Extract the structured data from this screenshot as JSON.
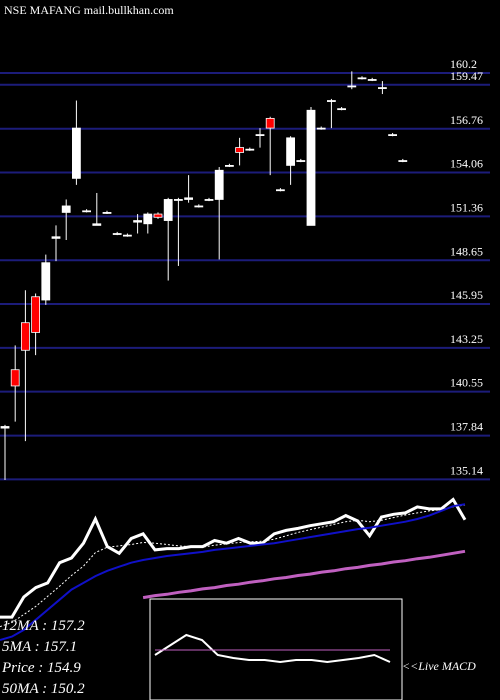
{
  "chart_data": [
    {
      "type": "candlestick",
      "title": "NSE MAFANG mail.bullkhan.com",
      "open": [
        138.3,
        141.9,
        144.8,
        146.4,
        146.2,
        150.0,
        151.6,
        153.7,
        151.7,
        150.8,
        151.6,
        150.3,
        150.2,
        151.0,
        150.9,
        151.5,
        151.1,
        152.4,
        152.4,
        152.0,
        152.4,
        152.4,
        154.5,
        155.6,
        155.5,
        156.4,
        157.4,
        153.0,
        154.5,
        154.8,
        150.8,
        156.8,
        158.5,
        158.0,
        159.4,
        159.9,
        159.8,
        159.3,
        156.4,
        154.8
      ],
      "high": [
        138.5,
        143.4,
        146.8,
        146.6,
        149.0,
        150.8,
        152.4,
        158.5,
        151.8,
        152.8,
        151.7,
        150.4,
        150.3,
        151.5,
        151.6,
        151.6,
        152.5,
        152.5,
        153.9,
        152.1,
        152.5,
        154.4,
        154.6,
        156.2,
        155.6,
        156.8,
        157.5,
        153.1,
        156.3,
        154.9,
        158.1,
        156.9,
        158.6,
        158.1,
        160.3,
        160.0,
        159.9,
        159.7,
        156.5,
        154.9
      ],
      "low": [
        135.1,
        138.7,
        137.5,
        142.8,
        145.9,
        148.6,
        149.9,
        153.3,
        151.6,
        150.8,
        151.5,
        150.2,
        150.1,
        150.3,
        150.3,
        151.2,
        147.4,
        148.3,
        152.2,
        151.9,
        152.3,
        148.7,
        154.4,
        154.5,
        155.4,
        155.6,
        153.9,
        152.9,
        153.3,
        154.7,
        150.8,
        156.7,
        156.8,
        157.9,
        159.2,
        159.8,
        159.7,
        158.9,
        156.3,
        154.7
      ],
      "close": [
        138.4,
        140.9,
        143.1,
        144.2,
        148.5,
        150.1,
        152.0,
        156.8,
        151.7,
        150.9,
        151.6,
        150.3,
        150.2,
        151.1,
        151.5,
        151.3,
        152.4,
        152.4,
        152.5,
        152.0,
        152.4,
        154.2,
        154.5,
        155.3,
        155.5,
        156.4,
        156.8,
        153.0,
        156.2,
        154.8,
        157.9,
        156.8,
        158.5,
        158.0,
        159.4,
        159.9,
        159.8,
        159.3,
        156.4,
        154.8
      ],
      "up_color": "#ffffff",
      "down_color": "#ff0000",
      "ylim": [
        135.1,
        164.7
      ],
      "yticks": [
        160.2,
        159.47,
        156.76,
        154.06,
        151.36,
        148.65,
        145.95,
        143.25,
        140.55,
        137.84,
        135.14
      ],
      "grid": true,
      "grid_color": "#1c1c7a"
    },
    {
      "type": "line",
      "series": [
        {
          "color": "#ffffff",
          "width": 3,
          "values": [
            140.4,
            140.4,
            143.4,
            144.8,
            145.5,
            148.5,
            149.2,
            151.4,
            155.0,
            150.9,
            149.9,
            152.1,
            152.8,
            150.4,
            150.6,
            150.6,
            150.9,
            150.9,
            151.8,
            151.4,
            152.1,
            151.4,
            151.4,
            152.8,
            153.3,
            153.6,
            154.0,
            154.3,
            154.6,
            155.5,
            154.7,
            152.5,
            155.3,
            155.7,
            155.9,
            156.8,
            156.5,
            156.5,
            157.9,
            154.9
          ]
        },
        {
          "color": "#ffffff",
          "width": 1,
          "dash": true,
          "values": [
            139.0,
            139.6,
            140.8,
            142.0,
            143.5,
            145.0,
            146.6,
            148.0,
            150.0,
            150.8,
            151.0,
            151.2,
            151.5,
            151.4,
            151.2,
            151.0,
            150.9,
            150.8,
            151.1,
            151.3,
            151.5,
            151.6,
            151.7,
            152.0,
            152.5,
            153.0,
            153.4,
            153.8,
            154.2,
            154.6,
            154.8,
            154.6,
            154.8,
            155.2,
            155.6,
            155.9,
            156.2,
            156.4,
            156.8,
            157.1
          ]
        },
        {
          "color": "#1010c8",
          "width": 2,
          "values": [
            137.0,
            137.5,
            138.5,
            140.0,
            141.5,
            143.0,
            144.5,
            145.5,
            146.5,
            147.3,
            147.9,
            148.5,
            148.9,
            149.2,
            149.5,
            149.7,
            149.9,
            150.1,
            150.4,
            150.6,
            150.8,
            151.0,
            151.2,
            151.4,
            151.7,
            152.0,
            152.3,
            152.6,
            152.9,
            153.2,
            153.5,
            153.7,
            154.0,
            154.3,
            154.6,
            155.0,
            155.5,
            156.2,
            156.9,
            157.2
          ]
        },
        {
          "color": "#c060c0",
          "width": 3,
          "values": [
            null,
            null,
            null,
            null,
            null,
            null,
            null,
            null,
            null,
            null,
            null,
            null,
            143.3,
            143.6,
            143.8,
            144.1,
            144.3,
            144.6,
            144.8,
            145.1,
            145.3,
            145.6,
            145.8,
            146.1,
            146.3,
            146.6,
            146.8,
            147.1,
            147.3,
            147.6,
            147.8,
            148.1,
            148.3,
            148.6,
            148.8,
            149.1,
            149.3,
            149.6,
            149.9,
            150.2
          ]
        }
      ],
      "ylim": [
        137.0,
        160.8
      ],
      "legend_labels": [
        "12MA  : 157.2",
        "5MA   : 157.1",
        "Price  : 154.9",
        "50MA  : 150.2"
      ]
    },
    {
      "type": "line",
      "label": "<<Live MACD",
      "series": [
        {
          "color": "#ffffff",
          "width": 2,
          "values": [
            -0.5,
            0.5,
            1.5,
            1.0,
            -0.5,
            -0.8,
            -1.0,
            -1.0,
            -1.2,
            -1.0,
            -1.0,
            -1.2,
            -1.0,
            -0.8,
            -0.5,
            -1.2
          ]
        },
        {
          "color": "#c060c0",
          "width": 1,
          "values": [
            0,
            0,
            0,
            0,
            0,
            0,
            0,
            0,
            0,
            0,
            0,
            0,
            0,
            0,
            0,
            0
          ]
        }
      ],
      "ylim": [
        -5,
        5
      ]
    }
  ]
}
